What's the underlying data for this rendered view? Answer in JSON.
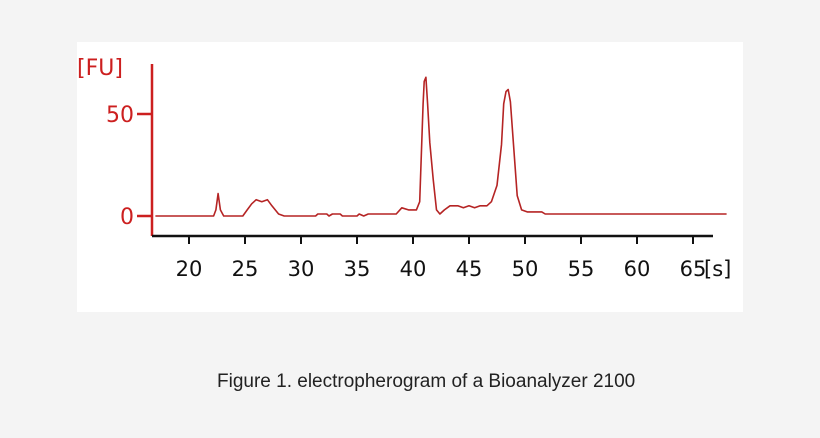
{
  "caption": "Figure 1. electropherogram of a Bioanalyzer 2100",
  "colors": {
    "y_axis": "#cc1f1f",
    "trace": "#b52424",
    "x_axis": "#111111",
    "background": "#ffffff"
  },
  "chart_data": {
    "type": "line",
    "ylabel": "[FU]",
    "xlabel": "[s]",
    "xlim": [
      17,
      68
    ],
    "ylim": [
      -8,
      75
    ],
    "x_ticks": [
      20,
      25,
      30,
      35,
      40,
      45,
      50,
      55,
      60,
      65
    ],
    "y_ticks": [
      0,
      50
    ],
    "grid": false,
    "series": [
      {
        "points": [
          [
            17,
            0
          ],
          [
            22.2,
            0
          ],
          [
            22.4,
            3
          ],
          [
            22.6,
            11
          ],
          [
            22.8,
            3
          ],
          [
            23.1,
            0
          ],
          [
            24.8,
            0
          ],
          [
            25.2,
            3
          ],
          [
            25.6,
            6
          ],
          [
            26.0,
            8
          ],
          [
            26.5,
            7
          ],
          [
            27.0,
            8
          ],
          [
            27.4,
            5
          ],
          [
            28.0,
            1
          ],
          [
            28.5,
            0
          ],
          [
            31.3,
            0
          ],
          [
            31.5,
            1
          ],
          [
            32.3,
            1
          ],
          [
            32.5,
            0
          ],
          [
            32.8,
            1
          ],
          [
            33.5,
            1
          ],
          [
            33.7,
            0
          ],
          [
            35.0,
            0
          ],
          [
            35.2,
            1
          ],
          [
            35.6,
            0
          ],
          [
            36.0,
            1
          ],
          [
            38.5,
            1
          ],
          [
            39.0,
            4
          ],
          [
            39.6,
            3
          ],
          [
            40.3,
            3
          ],
          [
            40.6,
            7
          ],
          [
            40.9,
            55
          ],
          [
            41.0,
            66
          ],
          [
            41.15,
            68
          ],
          [
            41.3,
            55
          ],
          [
            41.5,
            36
          ],
          [
            41.8,
            18
          ],
          [
            42.1,
            3
          ],
          [
            42.4,
            1
          ],
          [
            42.8,
            3
          ],
          [
            43.3,
            5
          ],
          [
            44.0,
            5
          ],
          [
            44.5,
            4
          ],
          [
            45.0,
            5
          ],
          [
            45.5,
            4
          ],
          [
            46.0,
            5
          ],
          [
            46.6,
            5
          ],
          [
            47.0,
            7
          ],
          [
            47.5,
            15
          ],
          [
            47.9,
            35
          ],
          [
            48.1,
            55
          ],
          [
            48.3,
            61
          ],
          [
            48.5,
            62
          ],
          [
            48.7,
            56
          ],
          [
            49.0,
            33
          ],
          [
            49.3,
            10
          ],
          [
            49.7,
            3
          ],
          [
            50.2,
            2
          ],
          [
            51.5,
            2
          ],
          [
            51.8,
            1
          ],
          [
            68.0,
            1
          ]
        ]
      }
    ]
  }
}
